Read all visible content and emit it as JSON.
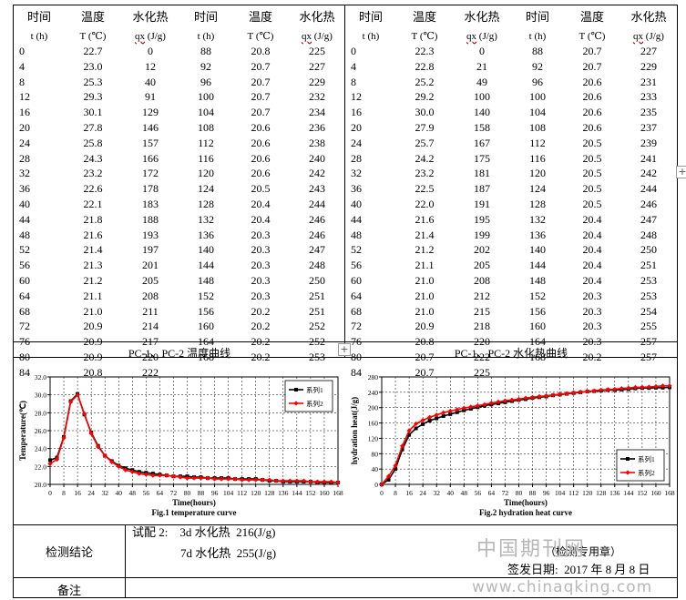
{
  "table": {
    "headers_row1": [
      "时间",
      "温度",
      "水化热",
      "时间",
      "温度",
      "水化热",
      "时间",
      "温度",
      "水化热",
      "时间",
      "温度",
      "水化热"
    ],
    "headers_row2": [
      "t (h)",
      "T (℃)",
      "qx (J/g)",
      "t (h)",
      "T (℃)",
      "qx (J/g)",
      "t (h)",
      "T (℃)",
      "qx (J/g)",
      "t (h)",
      "T (℃)",
      "qx (J/g)"
    ],
    "rows": [
      [
        "0",
        "22.7",
        "0",
        "88",
        "20.8",
        "225",
        "0",
        "22.3",
        "0",
        "88",
        "20.7",
        "227"
      ],
      [
        "4",
        "23.0",
        "12",
        "92",
        "20.7",
        "227",
        "4",
        "22.8",
        "21",
        "92",
        "20.7",
        "229"
      ],
      [
        "8",
        "25.3",
        "40",
        "96",
        "20.7",
        "229",
        "8",
        "25.2",
        "49",
        "96",
        "20.6",
        "231"
      ],
      [
        "12",
        "29.3",
        "91",
        "100",
        "20.7",
        "232",
        "12",
        "29.2",
        "100",
        "100",
        "20.6",
        "233"
      ],
      [
        "16",
        "30.1",
        "129",
        "104",
        "20.7",
        "234",
        "16",
        "30.0",
        "140",
        "104",
        "20.6",
        "235"
      ],
      [
        "20",
        "27.8",
        "146",
        "108",
        "20.6",
        "236",
        "20",
        "27.9",
        "158",
        "108",
        "20.6",
        "237"
      ],
      [
        "24",
        "25.8",
        "157",
        "112",
        "20.6",
        "238",
        "24",
        "25.7",
        "167",
        "112",
        "20.5",
        "239"
      ],
      [
        "28",
        "24.3",
        "166",
        "116",
        "20.6",
        "240",
        "28",
        "24.2",
        "175",
        "116",
        "20.5",
        "241"
      ],
      [
        "32",
        "23.2",
        "172",
        "120",
        "20.6",
        "242",
        "32",
        "23.2",
        "181",
        "120",
        "20.5",
        "242"
      ],
      [
        "36",
        "22.6",
        "178",
        "124",
        "20.5",
        "243",
        "36",
        "22.5",
        "187",
        "124",
        "20.5",
        "244"
      ],
      [
        "40",
        "22.1",
        "183",
        "128",
        "20.4",
        "244",
        "40",
        "22.0",
        "191",
        "128",
        "20.5",
        "246"
      ],
      [
        "44",
        "21.8",
        "188",
        "132",
        "20.4",
        "246",
        "44",
        "21.6",
        "195",
        "132",
        "20.4",
        "247"
      ],
      [
        "48",
        "21.6",
        "193",
        "136",
        "20.3",
        "246",
        "48",
        "21.4",
        "199",
        "136",
        "20.4",
        "248"
      ],
      [
        "52",
        "21.4",
        "197",
        "140",
        "20.3",
        "247",
        "52",
        "21.2",
        "202",
        "140",
        "20.4",
        "250"
      ],
      [
        "56",
        "21.3",
        "201",
        "144",
        "20.3",
        "248",
        "56",
        "21.1",
        "205",
        "144",
        "20.4",
        "251"
      ],
      [
        "60",
        "21.2",
        "205",
        "148",
        "20.3",
        "250",
        "60",
        "21.0",
        "208",
        "148",
        "20.4",
        "253"
      ],
      [
        "64",
        "21.1",
        "208",
        "152",
        "20.3",
        "251",
        "64",
        "21.0",
        "212",
        "152",
        "20.3",
        "253"
      ],
      [
        "68",
        "21.0",
        "211",
        "156",
        "20.2",
        "251",
        "68",
        "21.0",
        "215",
        "156",
        "20.3",
        "254"
      ],
      [
        "72",
        "20.9",
        "214",
        "160",
        "20.2",
        "252",
        "72",
        "20.9",
        "218",
        "160",
        "20.3",
        "255"
      ],
      [
        "76",
        "20.9",
        "217",
        "164",
        "20.2",
        "252",
        "76",
        "20.8",
        "220",
        "164",
        "20.3",
        "257"
      ],
      [
        "80",
        "20.9",
        "220",
        "168",
        "20.2",
        "253",
        "80",
        "20.7",
        "222",
        "168",
        "20.2",
        "257"
      ],
      [
        "84",
        "20.8",
        "222",
        "",
        "",
        "",
        "84",
        "20.7",
        "225",
        "",
        "",
        ""
      ]
    ]
  },
  "captions": {
    "left": "PC-1、PC-2 温度曲线",
    "right": "PC-1、PC-2 水化热曲线"
  },
  "chart_data": [
    {
      "type": "line",
      "title": "Fig.1 temperature curve",
      "xlabel": "Time(hours)",
      "ylabel": "Temperature(℃)",
      "xlim": [
        0,
        168
      ],
      "ylim": [
        20.0,
        32.0
      ],
      "xticks": [
        0,
        8,
        16,
        24,
        32,
        40,
        48,
        56,
        64,
        72,
        80,
        88,
        96,
        104,
        112,
        120,
        128,
        136,
        144,
        152,
        160,
        168
      ],
      "yticks": [
        "20.0",
        "22.0",
        "24.0",
        "26.0",
        "28.0",
        "30.0",
        "32.0"
      ],
      "grid": true,
      "legend": "top-right",
      "x": [
        0,
        4,
        8,
        12,
        16,
        20,
        24,
        28,
        32,
        36,
        40,
        44,
        48,
        52,
        56,
        60,
        64,
        68,
        72,
        76,
        80,
        84,
        88,
        92,
        96,
        100,
        104,
        108,
        112,
        116,
        120,
        124,
        128,
        132,
        136,
        140,
        144,
        148,
        152,
        156,
        160,
        164,
        168
      ],
      "series": [
        {
          "name": "系列1",
          "color": "#000000",
          "marker": "square",
          "values": [
            22.7,
            23.0,
            25.3,
            29.3,
            30.1,
            27.8,
            25.8,
            24.3,
            23.2,
            22.6,
            22.1,
            21.8,
            21.6,
            21.4,
            21.3,
            21.2,
            21.1,
            21.0,
            20.9,
            20.9,
            20.9,
            20.8,
            20.8,
            20.7,
            20.7,
            20.7,
            20.7,
            20.6,
            20.6,
            20.6,
            20.6,
            20.5,
            20.4,
            20.4,
            20.3,
            20.3,
            20.3,
            20.3,
            20.3,
            20.2,
            20.2,
            20.2,
            20.2
          ]
        },
        {
          "name": "系列2",
          "color": "#ff0000",
          "marker": "diamond",
          "values": [
            22.3,
            22.8,
            25.2,
            29.2,
            30.0,
            27.9,
            25.7,
            24.2,
            23.2,
            22.5,
            22.0,
            21.6,
            21.4,
            21.2,
            21.1,
            21.0,
            21.0,
            21.0,
            20.9,
            20.8,
            20.7,
            20.7,
            20.7,
            20.7,
            20.6,
            20.6,
            20.6,
            20.6,
            20.5,
            20.5,
            20.5,
            20.5,
            20.5,
            20.4,
            20.4,
            20.4,
            20.4,
            20.4,
            20.3,
            20.3,
            20.3,
            20.3,
            20.2
          ]
        }
      ]
    },
    {
      "type": "line",
      "title": "Fig.2 hydration heat curve",
      "xlabel": "Time(hours)",
      "ylabel": "hydration heat(J/g)",
      "xlim": [
        0,
        168
      ],
      "ylim": [
        0,
        280
      ],
      "xticks": [
        0,
        8,
        16,
        24,
        32,
        40,
        48,
        56,
        64,
        72,
        80,
        88,
        96,
        104,
        112,
        120,
        128,
        136,
        144,
        152,
        160,
        168
      ],
      "yticks": [
        "0",
        "40",
        "80",
        "120",
        "160",
        "200",
        "240",
        "280"
      ],
      "grid": true,
      "legend": "bottom-right",
      "x": [
        0,
        4,
        8,
        12,
        16,
        20,
        24,
        28,
        32,
        36,
        40,
        44,
        48,
        52,
        56,
        60,
        64,
        68,
        72,
        76,
        80,
        84,
        88,
        92,
        96,
        100,
        104,
        108,
        112,
        116,
        120,
        124,
        128,
        132,
        136,
        140,
        144,
        148,
        152,
        156,
        160,
        164,
        168
      ],
      "series": [
        {
          "name": "系列1",
          "color": "#000000",
          "marker": "square",
          "values": [
            0,
            12,
            40,
            91,
            129,
            146,
            157,
            166,
            172,
            178,
            183,
            188,
            193,
            197,
            201,
            205,
            208,
            211,
            214,
            217,
            220,
            222,
            225,
            227,
            229,
            232,
            234,
            236,
            238,
            240,
            242,
            243,
            244,
            246,
            246,
            247,
            248,
            250,
            251,
            251,
            252,
            252,
            253
          ]
        },
        {
          "name": "系列2",
          "color": "#ff0000",
          "marker": "diamond",
          "values": [
            0,
            21,
            49,
            100,
            140,
            158,
            167,
            175,
            181,
            187,
            191,
            195,
            199,
            202,
            205,
            208,
            212,
            215,
            218,
            220,
            222,
            225,
            227,
            229,
            231,
            233,
            235,
            237,
            239,
            241,
            242,
            244,
            246,
            247,
            248,
            250,
            251,
            253,
            253,
            254,
            255,
            257,
            257
          ]
        }
      ]
    }
  ],
  "conclusion": {
    "label": "检测结论",
    "line1": "试配 2:    3d 水化热  216(J/g)",
    "line2": "7d 水化热  255(J/g)",
    "stamp": "（检测专用章）",
    "date": "签发日期:  2017 年 8 月 8 日"
  },
  "remarks_label": "备注",
  "watermark": {
    "cn": "中国期刊网",
    "url": "www.chinaqking.com"
  },
  "colors": {
    "series1": "#000000",
    "series2": "#ff0000"
  }
}
